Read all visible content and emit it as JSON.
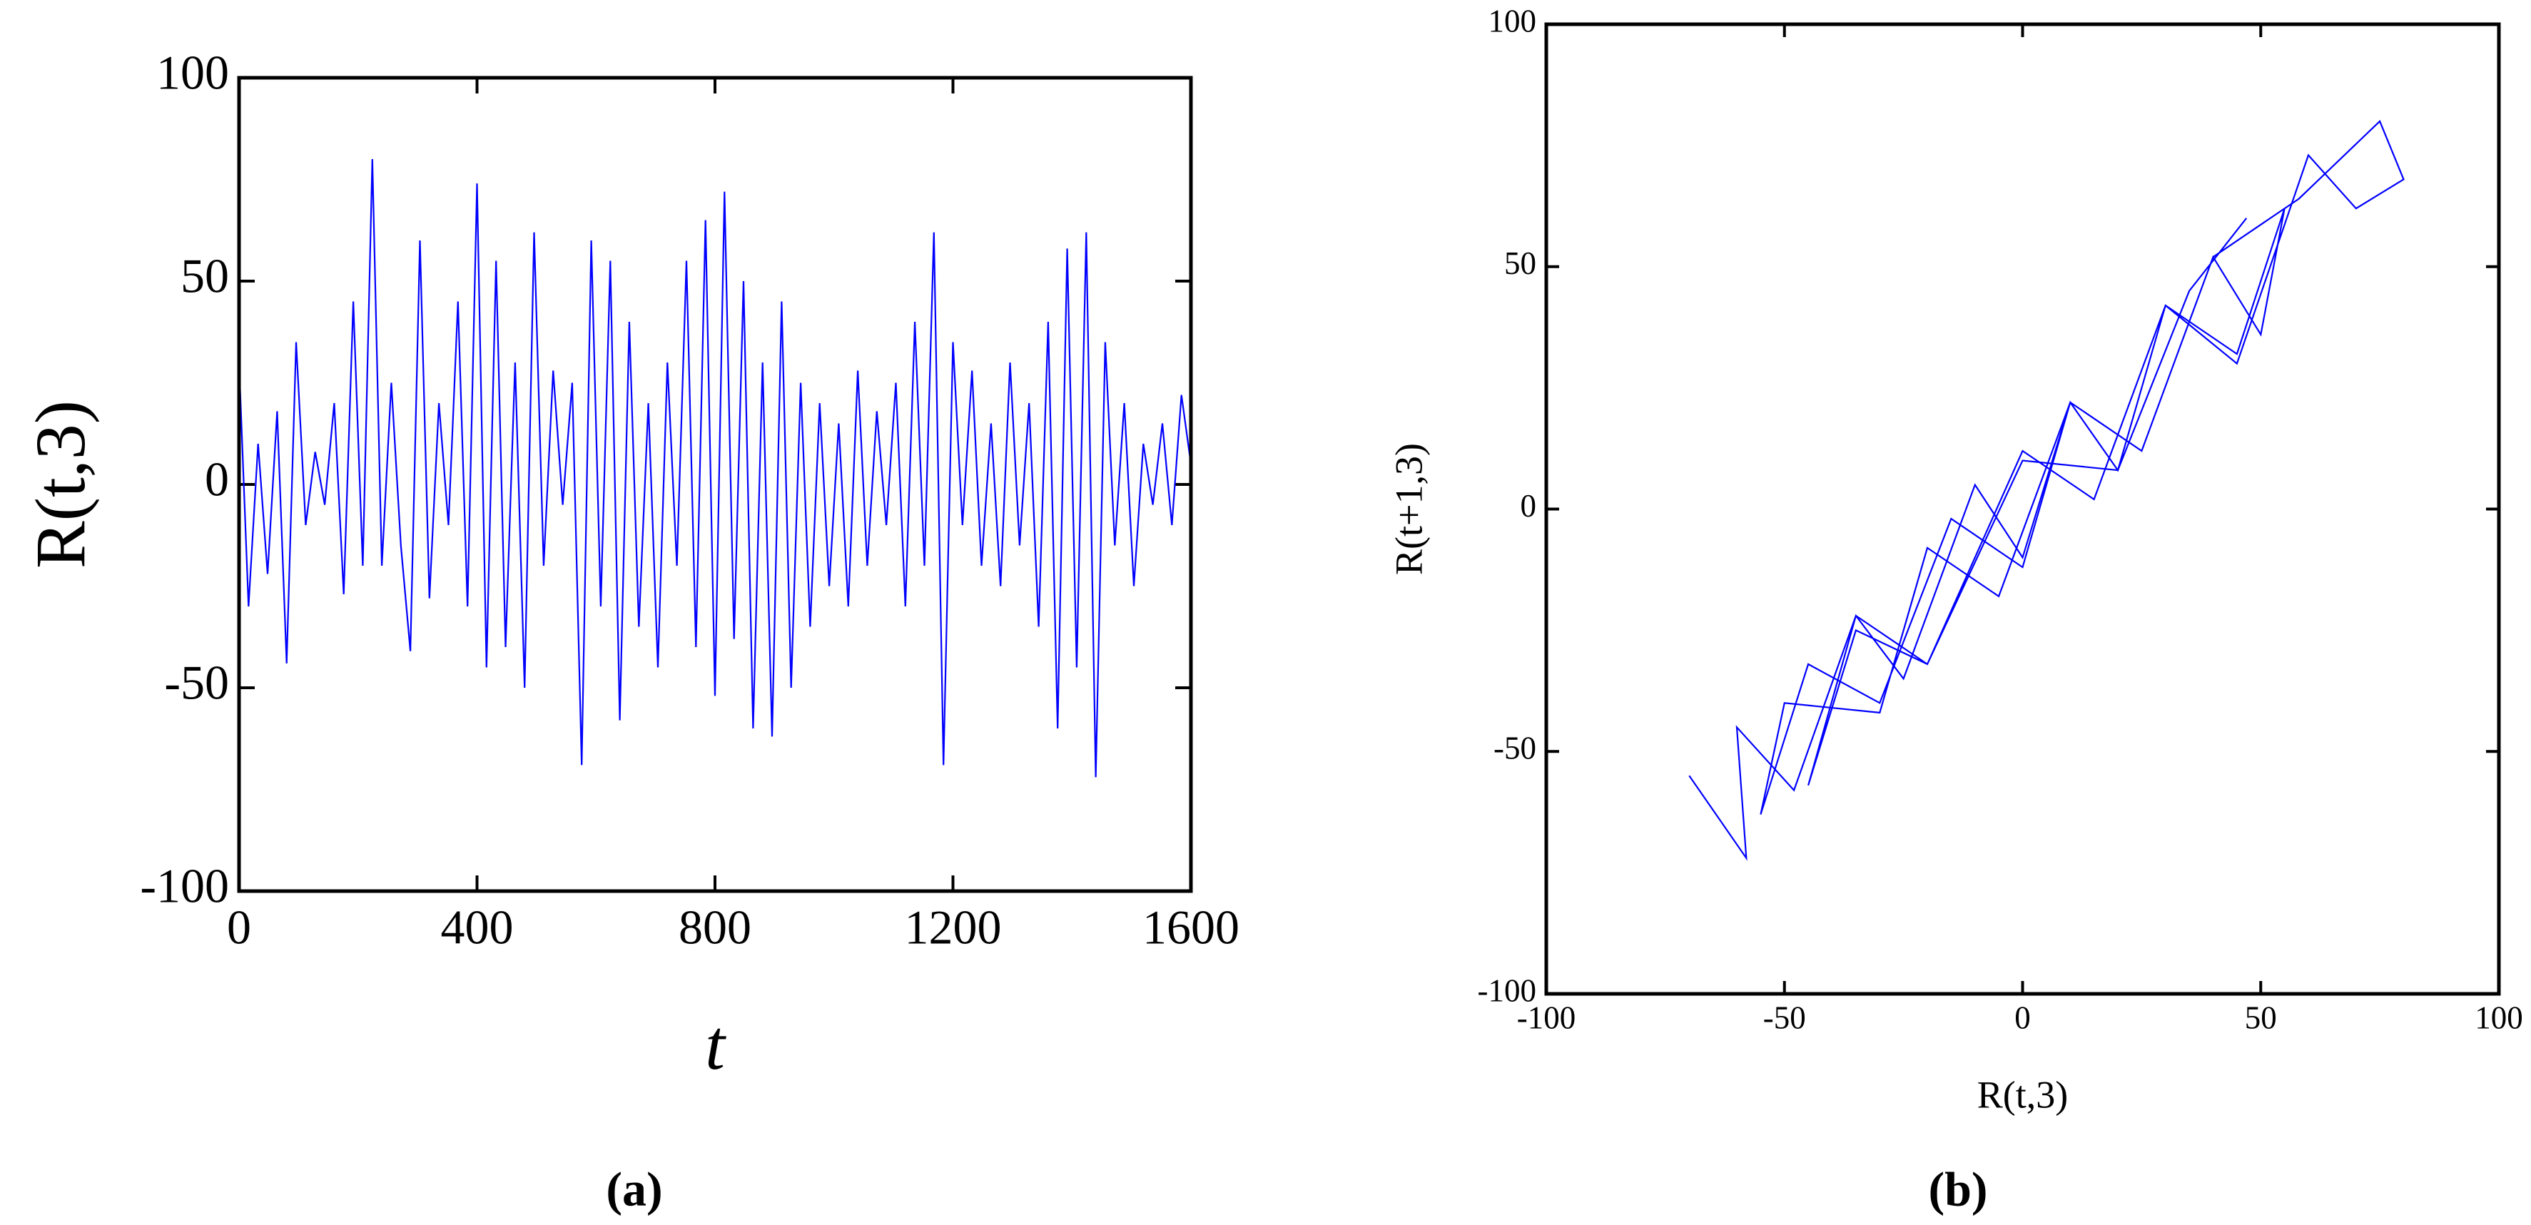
{
  "chart_data": [
    {
      "type": "line",
      "label": "(a)",
      "xlabel": "t",
      "ylabel": "R(t,3)",
      "color": "#0000ff",
      "x": [
        0,
        16,
        32,
        48,
        64,
        80,
        96,
        112,
        128,
        144,
        160,
        176,
        192,
        208,
        224,
        240,
        256,
        272,
        288,
        304,
        320,
        336,
        352,
        368,
        384,
        400,
        416,
        432,
        448,
        464,
        480,
        496,
        512,
        528,
        544,
        560,
        576,
        592,
        608,
        624,
        640,
        656,
        672,
        688,
        704,
        720,
        736,
        752,
        768,
        784,
        800,
        816,
        832,
        848,
        864,
        880,
        896,
        912,
        928,
        944,
        960,
        976,
        992,
        1008,
        1024,
        1040,
        1056,
        1072,
        1088,
        1104,
        1120,
        1136,
        1152,
        1168,
        1184,
        1200,
        1216,
        1232,
        1248,
        1264,
        1280,
        1296,
        1312,
        1328,
        1344,
        1360,
        1376,
        1392,
        1408,
        1424,
        1440,
        1456,
        1472,
        1488,
        1504,
        1520,
        1536,
        1552,
        1568,
        1584,
        1600
      ],
      "values": [
        30,
        -30,
        10,
        -22,
        18,
        -44,
        35,
        -10,
        8,
        -5,
        20,
        -27,
        45,
        -20,
        80,
        -20,
        25,
        -15,
        -41,
        60,
        -28,
        20,
        -10,
        45,
        -30,
        74,
        -45,
        55,
        -40,
        30,
        -50,
        62,
        -20,
        28,
        -5,
        25,
        -69,
        60,
        -30,
        55,
        -58,
        40,
        -35,
        20,
        -45,
        30,
        -20,
        55,
        -40,
        65,
        -52,
        72,
        -38,
        50,
        -60,
        30,
        -62,
        45,
        -50,
        25,
        -35,
        20,
        -25,
        15,
        -30,
        28,
        -20,
        18,
        -10,
        25,
        -30,
        40,
        -20,
        62,
        -69,
        35,
        -10,
        28,
        -20,
        15,
        -25,
        30,
        -15,
        20,
        -35,
        40,
        -60,
        58,
        -45,
        62,
        -72,
        35,
        -15,
        20,
        -25,
        10,
        -5,
        15,
        -10,
        22,
        5
      ],
      "xlim": [
        0,
        1600
      ],
      "xticks": [
        0,
        400,
        800,
        1200,
        1600
      ],
      "ylim": [
        -100,
        100
      ],
      "yticks": [
        -100,
        -50,
        0,
        50,
        100
      ]
    },
    {
      "type": "line",
      "label": "(b)",
      "xlabel": "R(t,3)",
      "ylabel": "R(t+1,3)",
      "color": "#0000ff",
      "x": [
        -70,
        -58,
        -60,
        -48,
        -35,
        -25,
        -10,
        0,
        10,
        20,
        30,
        45,
        60,
        70,
        80,
        75,
        58,
        40,
        25,
        10,
        0,
        -15,
        -30,
        -45,
        -55,
        -50,
        -30,
        -20,
        -5,
        10,
        25,
        40,
        50,
        55,
        45,
        30,
        15,
        0,
        -20,
        -35,
        -45,
        -35,
        -20,
        0,
        20,
        35,
        47
      ],
      "values": [
        -55,
        -72,
        -45,
        -58,
        -22,
        -35,
        5,
        -10,
        22,
        8,
        42,
        30,
        73,
        62,
        68,
        80,
        64,
        52,
        12,
        22,
        -12,
        -2,
        -40,
        -32,
        -63,
        -40,
        -42,
        -8,
        -18,
        22,
        12,
        52,
        36,
        62,
        32,
        42,
        2,
        12,
        -32,
        -22,
        -57,
        -25,
        -32,
        10,
        8,
        45,
        60
      ],
      "xlim": [
        -100,
        100
      ],
      "xticks": [
        -100,
        -50,
        0,
        50,
        100
      ],
      "ylim": [
        -100,
        100
      ],
      "yticks": [
        -100,
        -50,
        0,
        50,
        100
      ]
    }
  ]
}
